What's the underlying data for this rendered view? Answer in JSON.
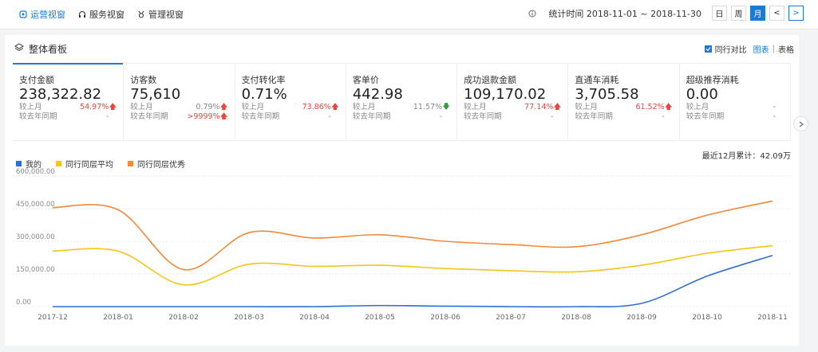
{
  "tabs": [
    {
      "label": "运营视窗",
      "active": true,
      "icon": "operations-icon"
    },
    {
      "label": "服务视窗",
      "active": false,
      "icon": "headset-icon"
    },
    {
      "label": "管理视窗",
      "active": false,
      "icon": "medal-icon"
    }
  ],
  "toolbar": {
    "stat_time": "统计时间 2018-11-01 ~ 2018-11-30",
    "periods": [
      "日",
      "周",
      "月"
    ],
    "active_period": "月",
    "prev": "<",
    "next": ">"
  },
  "card": {
    "title": "整体看板",
    "compare_label": "同行对比",
    "view_chart": "图表",
    "view_sep": "|",
    "view_table": "表格"
  },
  "metrics": [
    {
      "label": "支付金额",
      "value": "238,322.82",
      "mom_label": "较上月",
      "mom": "54.97%",
      "mom_dir": "up",
      "yoy_label": "较去年同期",
      "yoy": "-",
      "yoy_dir": ""
    },
    {
      "label": "访客数",
      "value": "75,610",
      "mom_label": "较上月",
      "mom": "0.79%",
      "mom_dir": "up",
      "yoy_label": "较去年同期",
      "yoy": ">9999%",
      "yoy_dir": "up"
    },
    {
      "label": "支付转化率",
      "value": "0.71%",
      "mom_label": "较上月",
      "mom": "73.86%",
      "mom_dir": "up",
      "yoy_label": "较去年同期",
      "yoy": "-",
      "yoy_dir": ""
    },
    {
      "label": "客单价",
      "value": "442.98",
      "mom_label": "较上月",
      "mom": "11.57%",
      "mom_dir": "down",
      "yoy_label": "较去年同期",
      "yoy": "-",
      "yoy_dir": ""
    },
    {
      "label": "成功退款金额",
      "value": "109,170.02",
      "mom_label": "较上月",
      "mom": "77.14%",
      "mom_dir": "up",
      "yoy_label": "较去年同期",
      "yoy": "-",
      "yoy_dir": ""
    },
    {
      "label": "直通车消耗",
      "value": "3,705.58",
      "mom_label": "较上月",
      "mom": "61.52%",
      "mom_dir": "up",
      "yoy_label": "较去年同期",
      "yoy": "-",
      "yoy_dir": ""
    },
    {
      "label": "超级推荐消耗",
      "value": "0.00",
      "mom_label": "较上月",
      "mom": "-",
      "mom_dir": "",
      "yoy_label": "较去年同期",
      "yoy": "-",
      "yoy_dir": ""
    }
  ],
  "cumulative_text": "最近12月累计：42.09万",
  "colors": {
    "accent": "#1a7bd7",
    "red": "#e8463e",
    "green": "#2ea042",
    "me": "#2f6fd1",
    "avg": "#f5c518",
    "excellent": "#f08a3c"
  },
  "chart_data": {
    "type": "line",
    "categories": [
      "2017-12",
      "2018-01",
      "2018-02",
      "2018-03",
      "2018-04",
      "2018-05",
      "2018-06",
      "2018-07",
      "2018-08",
      "2018-09",
      "2018-10",
      "2018-11"
    ],
    "ylim": [
      0,
      600000
    ],
    "yticks": [
      "0.00",
      "150,000.00",
      "300,000.00",
      "450,000.00",
      "600,000.00"
    ],
    "grid": true,
    "legend_position": "top-left",
    "series": [
      {
        "name": "我的",
        "color": "#2f6fd1",
        "values": [
          0,
          0,
          0,
          0,
          0,
          5000,
          2000,
          0,
          0,
          15000,
          140000,
          235000
        ]
      },
      {
        "name": "同行同层平均",
        "color": "#f5c518",
        "values": [
          255000,
          255000,
          100000,
          195000,
          185000,
          190000,
          175000,
          165000,
          160000,
          190000,
          245000,
          280000
        ]
      },
      {
        "name": "同行同层优秀",
        "color": "#f08a3c",
        "values": [
          455000,
          445000,
          170000,
          340000,
          315000,
          330000,
          300000,
          285000,
          275000,
          330000,
          420000,
          485000
        ]
      }
    ]
  }
}
